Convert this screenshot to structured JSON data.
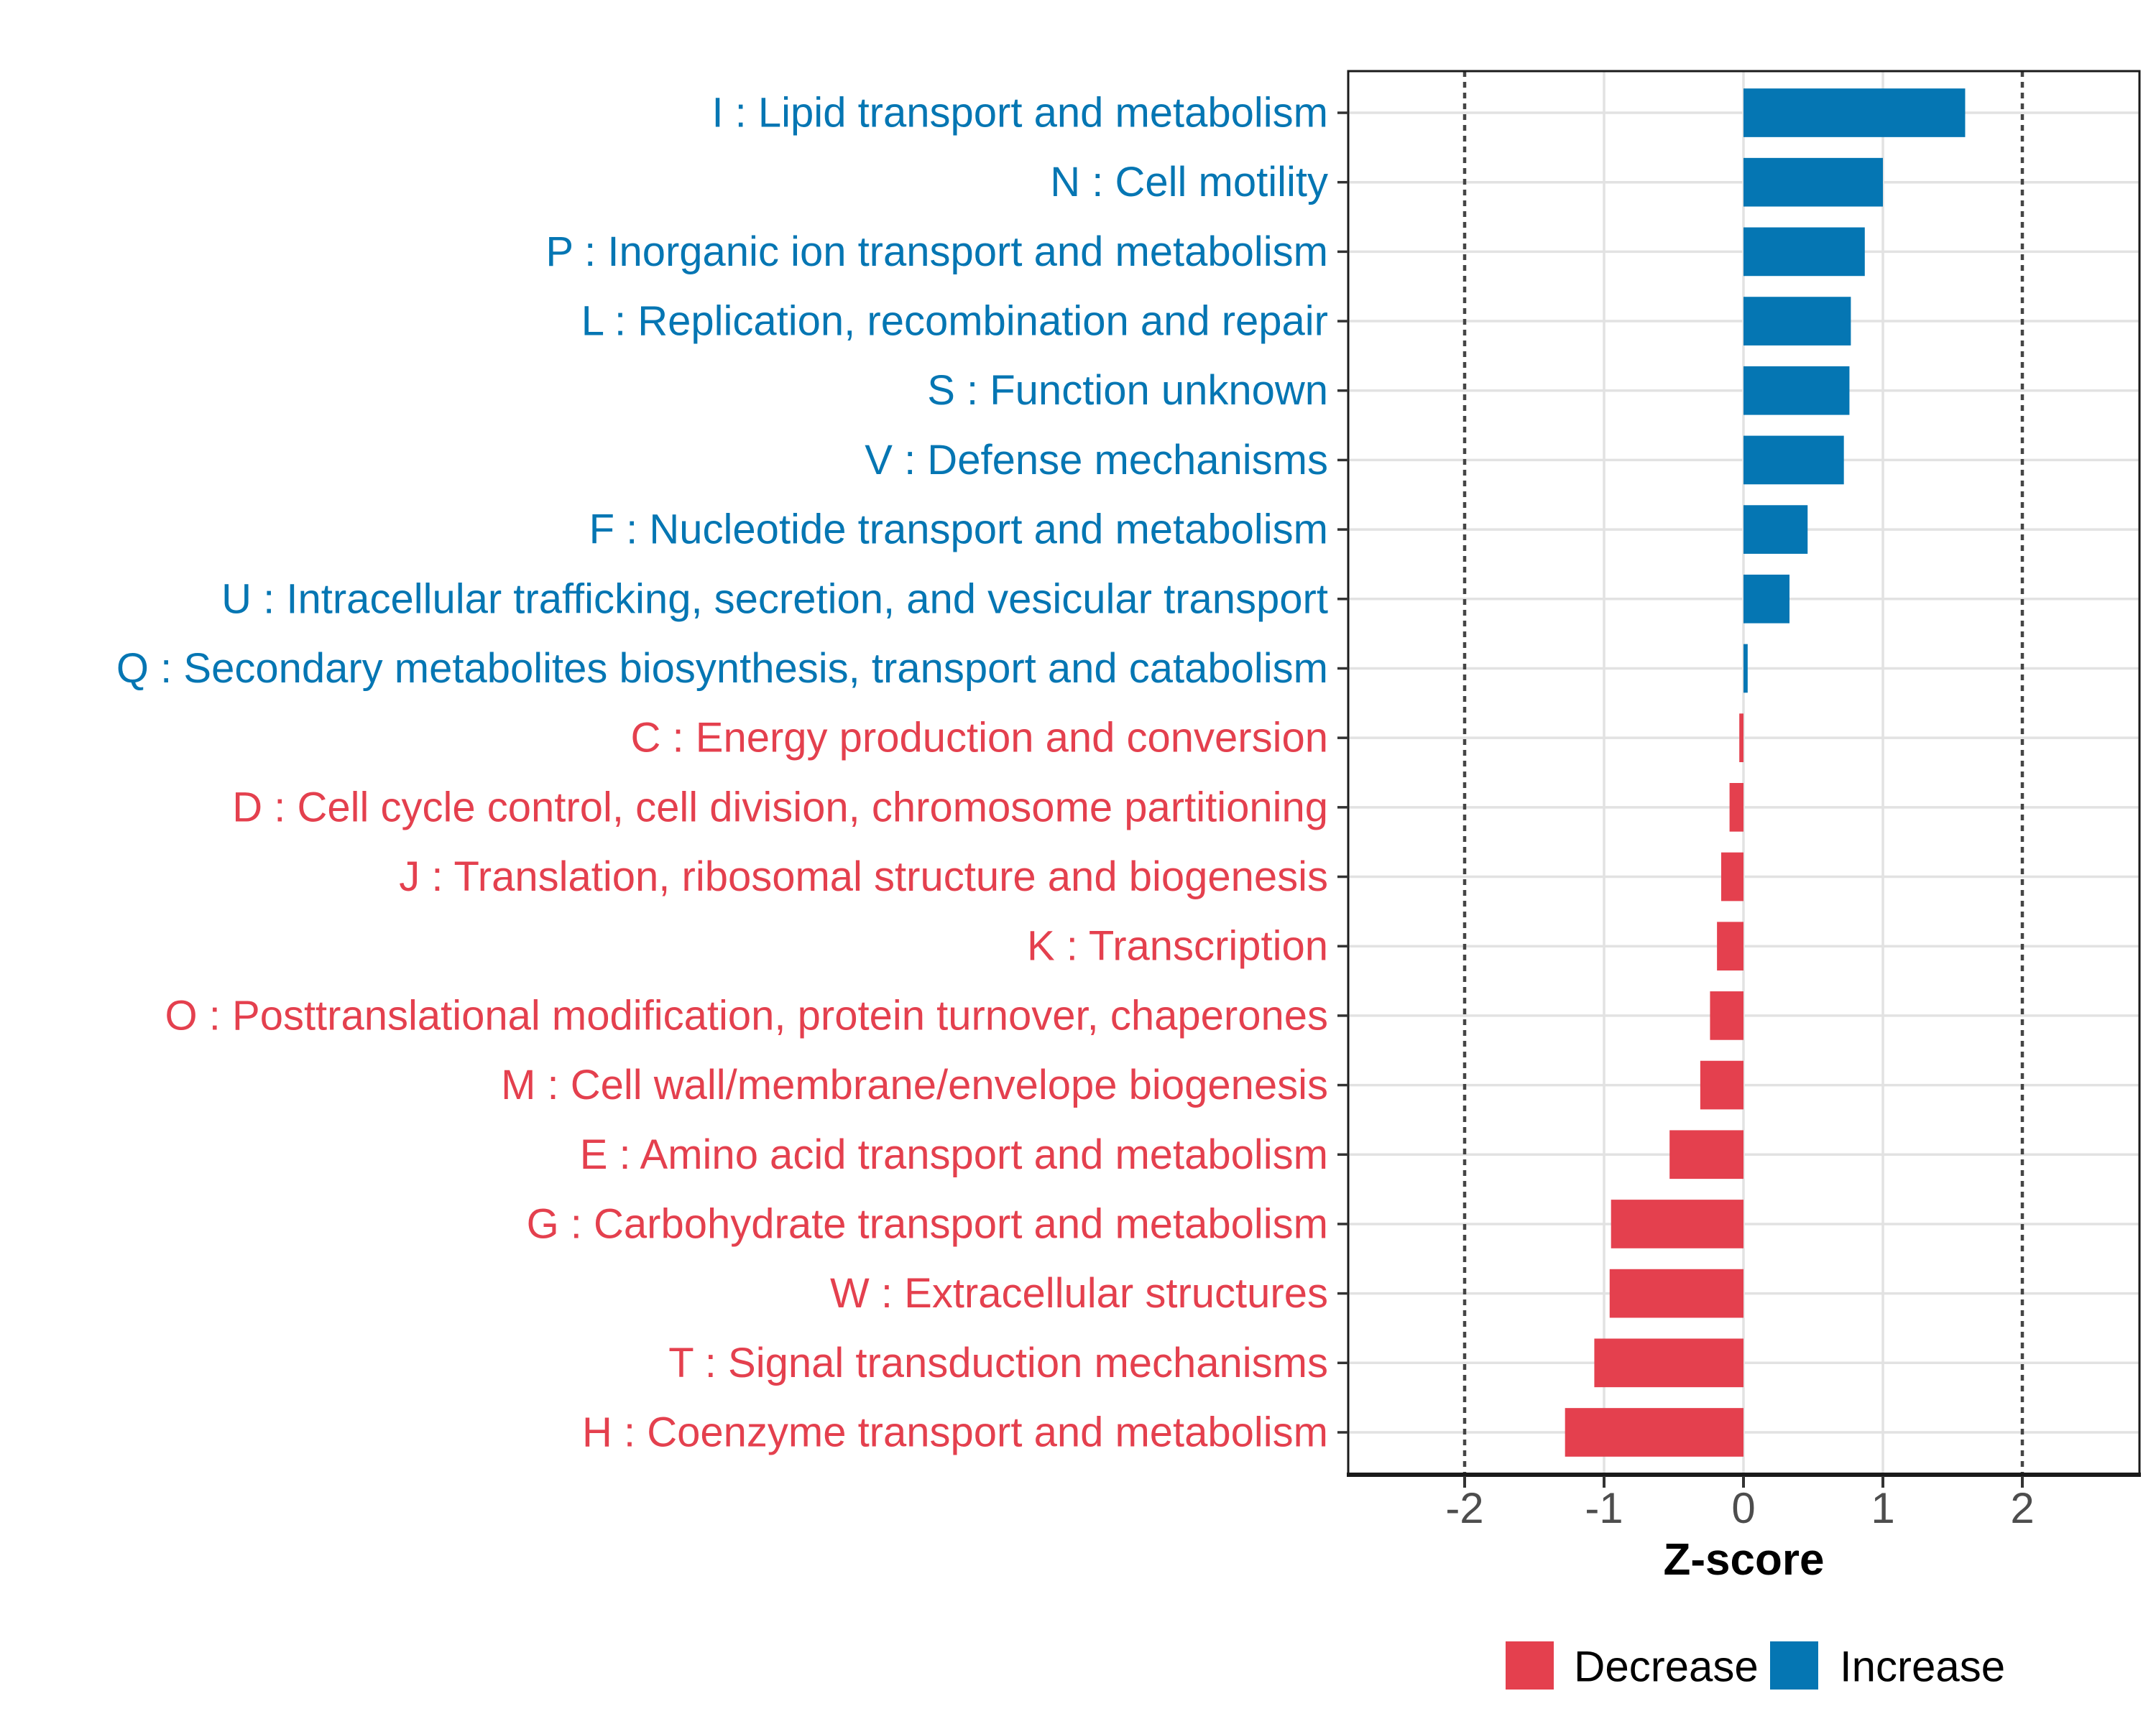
{
  "chart_data": {
    "type": "bar",
    "orientation": "horizontal",
    "title": "",
    "xlabel": "Z-score",
    "ylabel": "",
    "xlim": [
      -2.84,
      2.84
    ],
    "x_ticks": [
      -2,
      -1,
      0,
      1,
      2
    ],
    "x_tick_labels": [
      "-2",
      "-1",
      "0",
      "1",
      "2"
    ],
    "major_gridlines_x": [
      -1,
      0,
      1
    ],
    "dashed_guides_x": [
      -2,
      2
    ],
    "grid": "light-gray major gridlines; category gridlines behind bars; dotted guides at ±2",
    "legend_position": "bottom-right",
    "legend": [
      {
        "label": "Decrease",
        "color": "#E4404E"
      },
      {
        "label": "Increase",
        "color": "#0576B3"
      }
    ],
    "categories": [
      "I : Lipid transport and metabolism",
      "N : Cell motility",
      "P : Inorganic ion transport and metabolism",
      "L : Replication, recombination and repair",
      "S : Function unknown",
      "V : Defense mechanisms",
      "F : Nucleotide transport and metabolism",
      "U : Intracellular trafficking, secretion, and vesicular transport",
      "Q : Secondary metabolites biosynthesis, transport and catabolism",
      "C : Energy production and conversion",
      "D : Cell cycle control, cell division, chromosome partitioning",
      "J : Translation, ribosomal structure and biogenesis",
      "K : Transcription",
      "O : Posttranslational modification, protein turnover, chaperones",
      "M : Cell wall/membrane/envelope biogenesis",
      "E : Amino acid transport and metabolism",
      "G : Carbohydrate transport and metabolism",
      "W : Extracellular structures",
      "T : Signal transduction mechanisms",
      "H : Coenzyme transport and metabolism"
    ],
    "values": [
      1.59,
      1.0,
      0.87,
      0.77,
      0.76,
      0.72,
      0.46,
      0.33,
      0.03,
      -0.03,
      -0.1,
      -0.16,
      -0.19,
      -0.24,
      -0.31,
      -0.53,
      -0.95,
      -0.96,
      -1.07,
      -1.28
    ],
    "groups": [
      "Increase",
      "Increase",
      "Increase",
      "Increase",
      "Increase",
      "Increase",
      "Increase",
      "Increase",
      "Increase",
      "Decrease",
      "Decrease",
      "Decrease",
      "Decrease",
      "Decrease",
      "Decrease",
      "Decrease",
      "Decrease",
      "Decrease",
      "Decrease",
      "Decrease"
    ],
    "colors": {
      "increase": "#0576B3",
      "decrease": "#E4404E",
      "gridline": "#E2E2E2",
      "dashed_guide": "#454545",
      "axis": "#1A1A1A",
      "tick_mark": "#333333",
      "tick_label": "#4D4D4D",
      "axis_title": "#000000",
      "legend_text": "#000000",
      "background": "#FFFFFF"
    }
  }
}
